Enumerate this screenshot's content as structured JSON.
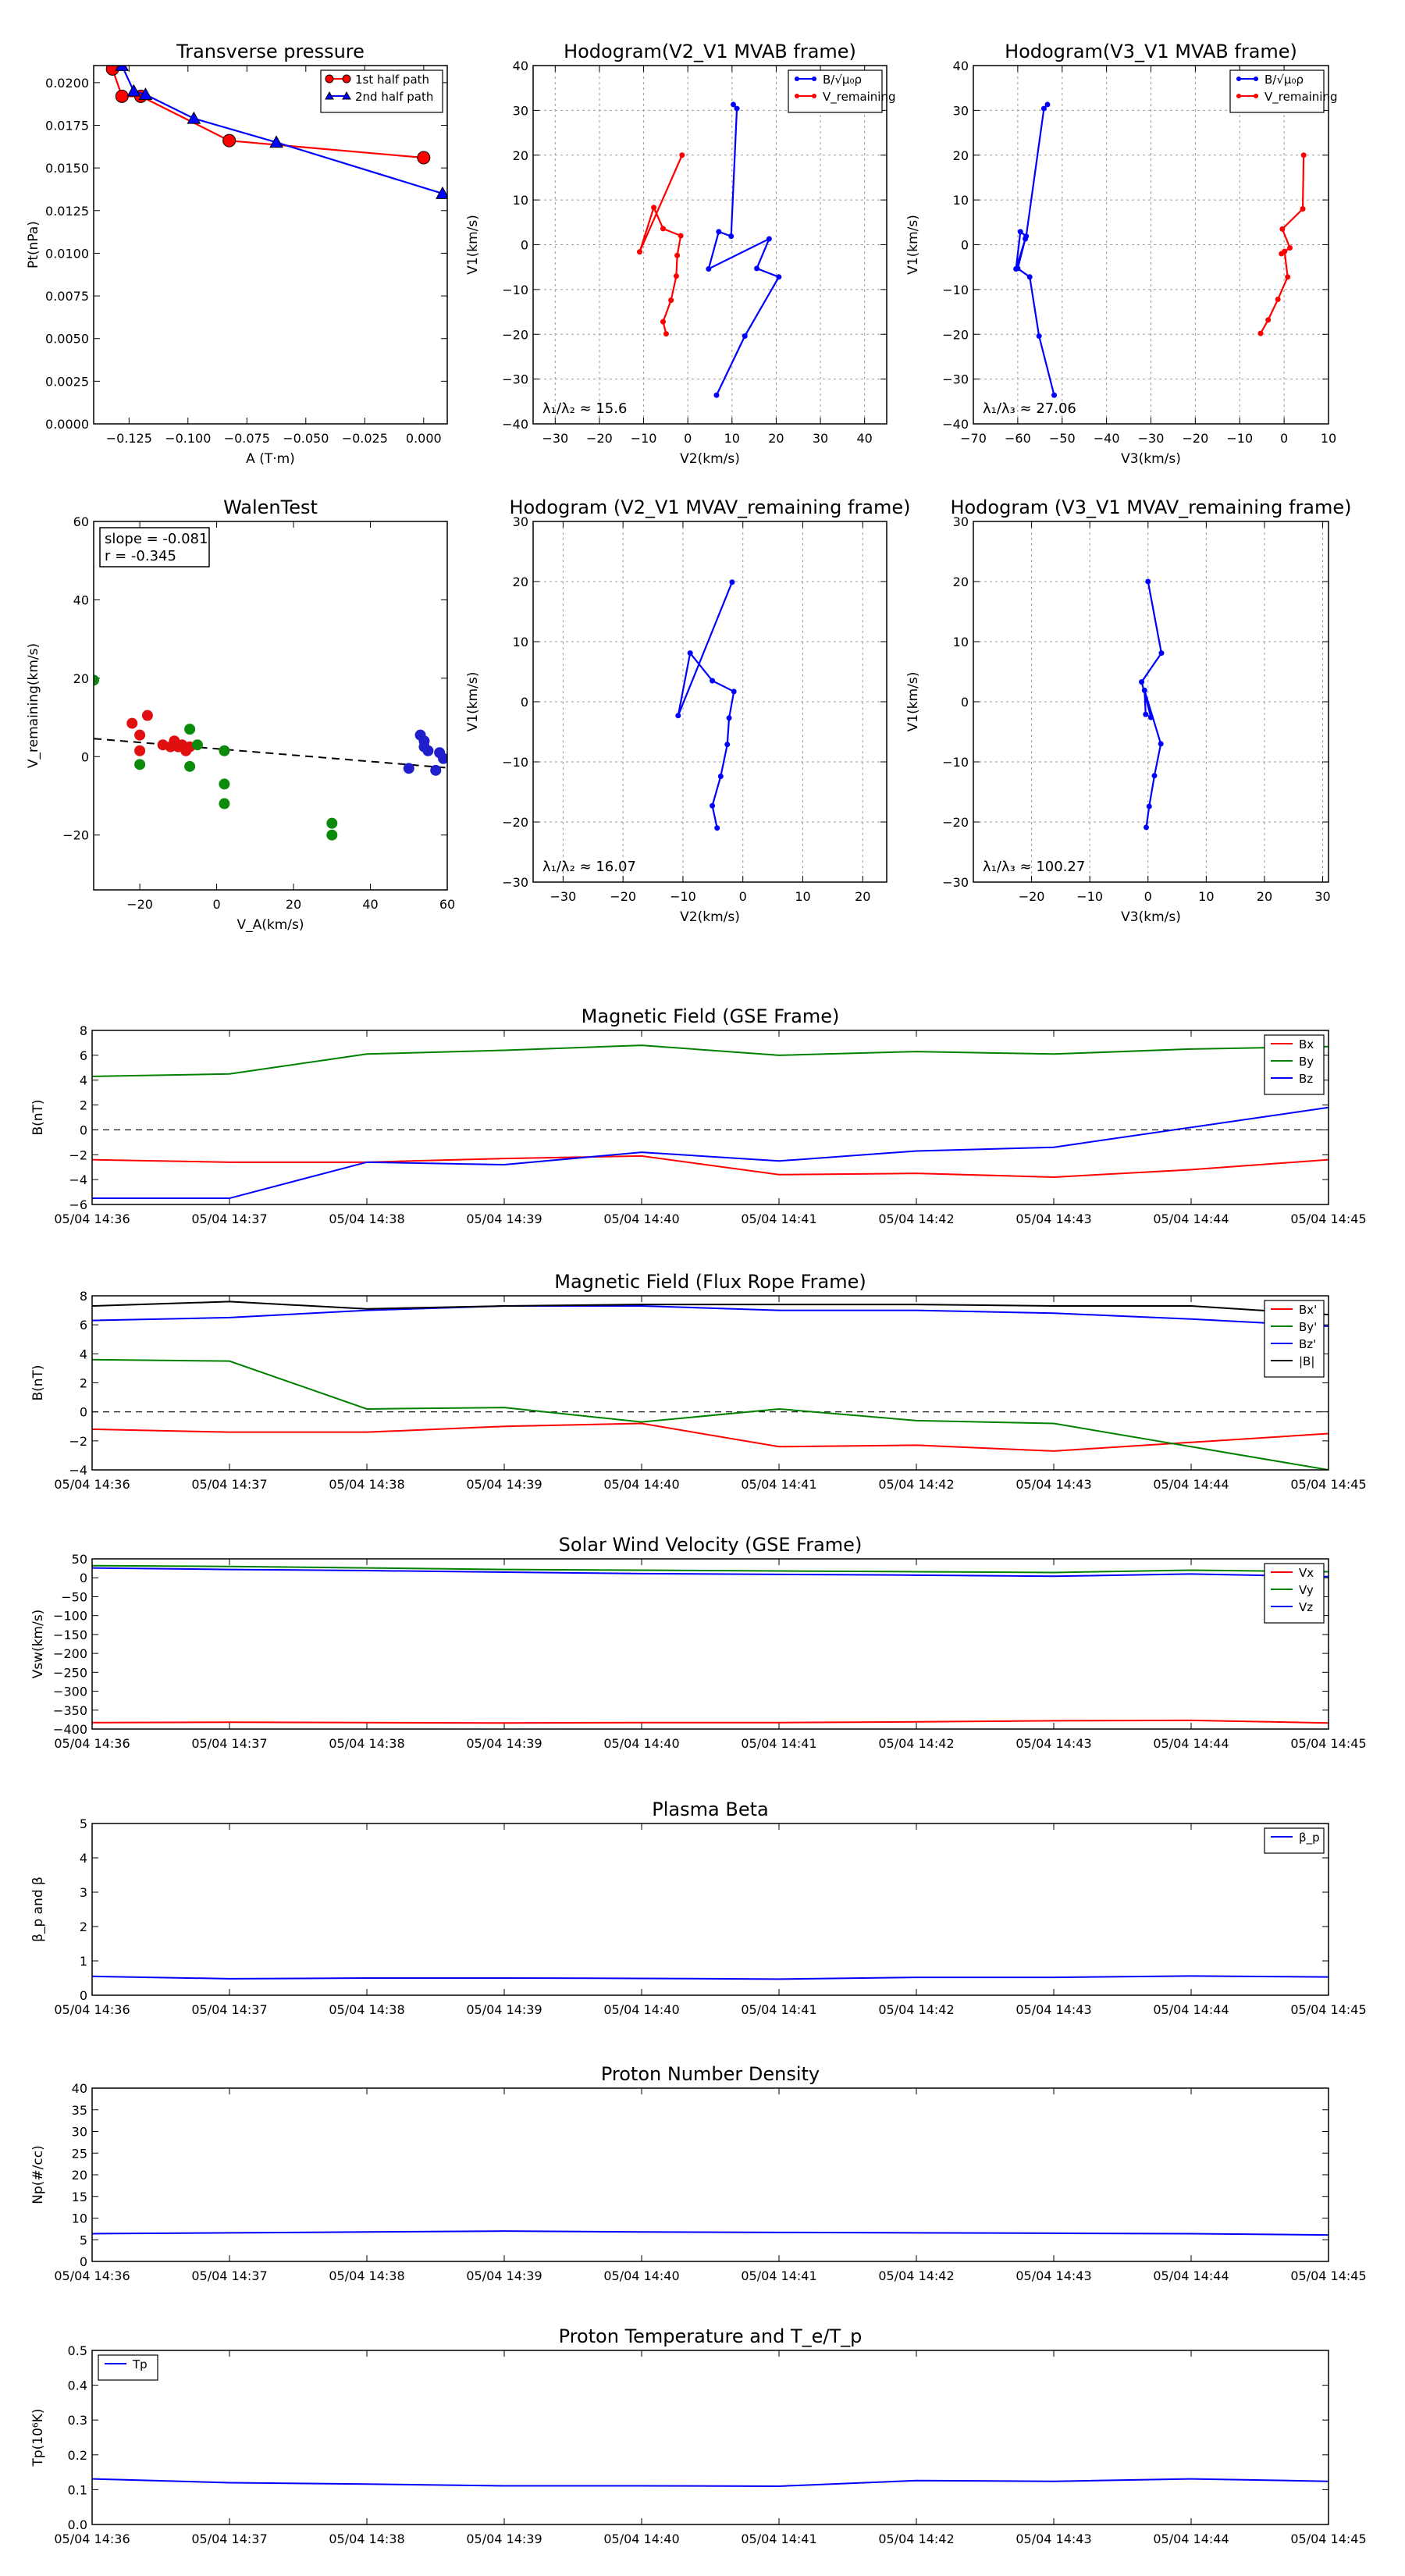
{
  "colors": {
    "red": "#ff0000",
    "blue": "#0000ff",
    "green": "#008000",
    "black": "#000000",
    "point_red": "#e01010",
    "point_blue": "#1f1fcc",
    "point_green": "#0c8a0c"
  },
  "chart_data": [
    {
      "type": "line",
      "title": "Transverse pressure",
      "xlabel": "A (T·m)",
      "ylabel": "Pt(nPa)",
      "xlim": [
        -0.14,
        0.01
      ],
      "ylim": [
        0,
        0.021
      ],
      "xticks": [
        -0.125,
        -0.1,
        -0.075,
        -0.05,
        -0.025,
        0.0
      ],
      "xtick_labels": [
        "−0.125",
        "−0.100",
        "−0.075",
        "−0.050",
        "−0.025",
        "0.000"
      ],
      "yticks": [
        0,
        0.0025,
        0.005,
        0.0075,
        0.01,
        0.0125,
        0.015,
        0.0175,
        0.02
      ],
      "ytick_labels": [
        "0.0000",
        "0.0025",
        "0.0050",
        "0.0075",
        "0.0100",
        "0.0125",
        "0.0150",
        "0.0175",
        "0.0200"
      ],
      "grid": false,
      "legend": "top-right",
      "series": [
        {
          "name": "1st half path",
          "color": "#ff0000",
          "marker": "circle",
          "x": [
            -0.132,
            -0.128,
            -0.12,
            -0.0825,
            0.0
          ],
          "y": [
            0.0208,
            0.0192,
            0.0192,
            0.0166,
            0.0156
          ]
        },
        {
          "name": "2nd half path",
          "color": "#0000ff",
          "marker": "triangle",
          "x": [
            -0.128,
            -0.123,
            -0.118,
            -0.0975,
            -0.0625,
            0.008
          ],
          "y": [
            0.021,
            0.0195,
            0.0193,
            0.0179,
            0.0165,
            0.0135
          ]
        }
      ]
    },
    {
      "type": "line",
      "title": "Hodogram(V2_V1 MVAB frame)",
      "xlabel": "V2(km/s)",
      "ylabel": "V1(km/s)",
      "xlim": [
        -35,
        45
      ],
      "ylim": [
        -40,
        40
      ],
      "xticks": [
        -30,
        -20,
        -10,
        0,
        10,
        20,
        30,
        40
      ],
      "xtick_labels": [
        "−30",
        "−20",
        "−10",
        "0",
        "10",
        "20",
        "30",
        "40"
      ],
      "yticks": [
        -40,
        -30,
        -20,
        -10,
        0,
        10,
        20,
        30,
        40
      ],
      "ytick_labels": [
        "−40",
        "−30",
        "−20",
        "−10",
        "0",
        "10",
        "20",
        "30",
        "40"
      ],
      "grid": true,
      "legend": "top-right",
      "annotation": "λ₁/λ₂ ≈ 15.6",
      "series": [
        {
          "name": "B/√μ₀ρ",
          "color": "#0000ff",
          "x": [
            10.3,
            11.1,
            9.8,
            7,
            4.7,
            18.4,
            15.6,
            20.6,
            12.9,
            6.5
          ],
          "y": [
            31.3,
            30.4,
            1.9,
            2.9,
            -5.4,
            1.3,
            -5.3,
            -7.2,
            -20.4,
            -33.6
          ]
        },
        {
          "name": "V_remaining",
          "color": "#ff0000",
          "x": [
            -1.3,
            -10.9,
            -7.7,
            -5.6,
            -1.6,
            -2.4,
            -2.6,
            -3.8,
            -5.6,
            -4.9
          ],
          "y": [
            20.0,
            -1.6,
            8.3,
            3.6,
            2.0,
            -2.4,
            -7.0,
            -12.4,
            -17.2,
            -19.9
          ]
        }
      ]
    },
    {
      "type": "line",
      "title": "Hodogram(V3_V1 MVAB frame)",
      "xlabel": "V3(km/s)",
      "ylabel": "V1(km/s)",
      "xlim": [
        -70,
        10
      ],
      "ylim": [
        -40,
        40
      ],
      "xticks": [
        -70,
        -60,
        -50,
        -40,
        -30,
        -20,
        -10,
        0,
        10
      ],
      "xtick_labels": [
        "−70",
        "−60",
        "−50",
        "−40",
        "−30",
        "−20",
        "−10",
        "0",
        "10"
      ],
      "yticks": [
        -40,
        -30,
        -20,
        -10,
        0,
        10,
        20,
        30,
        40
      ],
      "ytick_labels": [
        "−40",
        "−30",
        "−20",
        "−10",
        "0",
        "10",
        "20",
        "30",
        "40"
      ],
      "grid": true,
      "legend": "top-right",
      "annotation": "λ₁/λ₃ ≈ 27.06",
      "series": [
        {
          "name": "B/√μ₀ρ",
          "color": "#0000ff",
          "x": [
            -53.3,
            -54.1,
            -58.1,
            -59.4,
            -60.4,
            -58.3,
            -60.0,
            -57.3,
            -55.2,
            -51.8
          ],
          "y": [
            31.3,
            30.4,
            1.9,
            2.9,
            -5.4,
            1.3,
            -5.3,
            -7.2,
            -20.4,
            -33.6
          ]
        },
        {
          "name": "V_remaining",
          "color": "#ff0000",
          "x": [
            4.4,
            4.2,
            -0.4,
            1.3,
            -0.6,
            0.1,
            0.8,
            -1.4,
            -3.6,
            -5.3
          ],
          "y": [
            20.0,
            8.0,
            3.5,
            -0.7,
            -2.0,
            -1.5,
            -7.2,
            -12.2,
            -16.8,
            -19.8
          ]
        }
      ]
    },
    {
      "type": "scatter",
      "title": "WalenTest",
      "xlabel": "V_A(km/s)",
      "ylabel": "V_remaining(km/s)",
      "xlim": [
        -32,
        60
      ],
      "ylim": [
        -34,
        60
      ],
      "xticks": [
        -20,
        0,
        20,
        40,
        60
      ],
      "xtick_labels": [
        "−20",
        "0",
        "20",
        "40",
        "60"
      ],
      "yticks": [
        -20,
        0,
        20,
        40,
        60
      ],
      "ytick_labels": [
        "−20",
        "0",
        "20",
        "40",
        "60"
      ],
      "grid": false,
      "stats_lines": [
        "slope = -0.081",
        "r = -0.345"
      ],
      "fit_line": {
        "slope": -0.081,
        "intercept": 2.0,
        "style": "dashed"
      },
      "series": [
        {
          "color": "#e01010",
          "x": [
            -22,
            -18,
            -20,
            -20,
            -14,
            -11,
            -12,
            -9,
            -10,
            -8,
            -7
          ],
          "y": [
            8.5,
            10.5,
            5.5,
            1.5,
            3,
            4,
            2.5,
            3,
            2.5,
            1.5,
            2.5
          ],
          "name": ""
        },
        {
          "color": "#0c8a0c",
          "x": [
            -32,
            -20,
            -7,
            -5,
            -7,
            2,
            2,
            2,
            30,
            30
          ],
          "y": [
            19.5,
            -2,
            7,
            3,
            -2.5,
            1.5,
            -7,
            -12,
            -17,
            -20
          ],
          "name": ""
        },
        {
          "color": "#1f1fcc",
          "x": [
            50,
            53,
            54,
            55,
            54,
            57,
            58,
            59
          ],
          "y": [
            -3,
            5.5,
            4,
            1.5,
            2.5,
            -3.5,
            1,
            -0.5
          ],
          "name": ""
        }
      ]
    },
    {
      "type": "line",
      "title": "Hodogram (V2_V1 MVAV_remaining frame)",
      "xlabel": "V2(km/s)",
      "ylabel": "V1(km/s)",
      "xlim": [
        -35,
        24
      ],
      "ylim": [
        -30,
        30
      ],
      "xticks": [
        -30,
        -20,
        -10,
        0,
        10,
        20
      ],
      "xtick_labels": [
        "−30",
        "−20",
        "−10",
        "0",
        "10",
        "20"
      ],
      "yticks": [
        -30,
        -20,
        -10,
        0,
        10,
        20,
        30
      ],
      "ytick_labels": [
        "−30",
        "−20",
        "−10",
        "0",
        "10",
        "20",
        "30"
      ],
      "grid": true,
      "annotation": "λ₁/λ₂ ≈ 16.07",
      "series": [
        {
          "color": "#0000ff",
          "x": [
            -1.8,
            -10.8,
            -8.8,
            -5.1,
            -1.5,
            -2.3,
            -2.6,
            -3.7,
            -5.1,
            -4.3
          ],
          "y": [
            19.9,
            -2.3,
            8.1,
            3.5,
            1.7,
            -2.7,
            -7.1,
            -12.4,
            -17.3,
            -21.0
          ],
          "name": ""
        }
      ]
    },
    {
      "type": "line",
      "title": "Hodogram (V3_V1 MVAV_remaining frame)",
      "xlabel": "V3(km/s)",
      "ylabel": "V1(km/s)",
      "xlim": [
        -30,
        31
      ],
      "ylim": [
        -30,
        30
      ],
      "xticks": [
        -20,
        -10,
        0,
        10,
        20,
        30
      ],
      "xtick_labels": [
        "−20",
        "−10",
        "0",
        "10",
        "20",
        "30"
      ],
      "yticks": [
        -30,
        -20,
        -10,
        0,
        10,
        20,
        30
      ],
      "ytick_labels": [
        "−30",
        "−20",
        "−10",
        "0",
        "10",
        "20",
        "30"
      ],
      "grid": true,
      "annotation": "λ₁/λ₃ ≈ 100.27",
      "series": [
        {
          "color": "#0000ff",
          "x": [
            0.0,
            2.3,
            -1.1,
            0.5,
            -0.4,
            -0.6,
            2.2,
            1.1,
            0.2,
            -0.3
          ],
          "y": [
            20.0,
            8.1,
            3.3,
            -2.6,
            -2.1,
            1.9,
            -7.0,
            -12.3,
            -17.4,
            -20.9
          ],
          "name": ""
        }
      ]
    },
    {
      "type": "line",
      "title": "Magnetic Field (GSE Frame)",
      "ylabel": "B(nT)",
      "ylim": [
        -6,
        8
      ],
      "yticks": [
        -6,
        -4,
        -2,
        0,
        2,
        4,
        6,
        8
      ],
      "ytick_labels": [
        "−6",
        "−4",
        "−2",
        "0",
        "2",
        "4",
        "6",
        "8"
      ],
      "categories": [
        "05/04 14:36",
        "05/04 14:37",
        "05/04 14:38",
        "05/04 14:39",
        "05/04 14:40",
        "05/04 14:41",
        "05/04 14:42",
        "05/04 14:43",
        "05/04 14:44",
        "05/04 14:45"
      ],
      "zero_line": true,
      "legend": "top-right",
      "series": [
        {
          "name": "Bx",
          "color": "#ff0000",
          "values": [
            -2.4,
            -2.6,
            -2.6,
            -2.3,
            -2.1,
            -3.6,
            -3.5,
            -3.8,
            -3.2,
            -2.4
          ]
        },
        {
          "name": "By",
          "color": "#008000",
          "values": [
            4.3,
            4.5,
            6.1,
            6.4,
            6.8,
            6.0,
            6.3,
            6.1,
            6.5,
            6.7
          ]
        },
        {
          "name": "Bz",
          "color": "#0000ff",
          "values": [
            -5.5,
            -5.5,
            -2.6,
            -2.8,
            -1.8,
            -2.5,
            -1.7,
            -1.4,
            0.2,
            1.8
          ]
        }
      ]
    },
    {
      "type": "line",
      "title": "Magnetic Field (Flux Rope Frame)",
      "ylabel": "B(nT)",
      "ylim": [
        -4,
        8
      ],
      "yticks": [
        -4,
        -2,
        0,
        2,
        4,
        6,
        8
      ],
      "ytick_labels": [
        "−4",
        "−2",
        "0",
        "2",
        "4",
        "6",
        "8"
      ],
      "categories": [
        "05/04 14:36",
        "05/04 14:37",
        "05/04 14:38",
        "05/04 14:39",
        "05/04 14:40",
        "05/04 14:41",
        "05/04 14:42",
        "05/04 14:43",
        "05/04 14:44",
        "05/04 14:45"
      ],
      "zero_line": true,
      "legend": "top-right",
      "series": [
        {
          "name": "Bx'",
          "color": "#ff0000",
          "values": [
            -1.2,
            -1.4,
            -1.4,
            -1.0,
            -0.8,
            -2.4,
            -2.3,
            -2.7,
            -2.1,
            -1.5
          ]
        },
        {
          "name": "By'",
          "color": "#008000",
          "values": [
            3.6,
            3.5,
            0.2,
            0.3,
            -0.7,
            0.2,
            -0.6,
            -0.8,
            -2.4,
            -4.0
          ]
        },
        {
          "name": "Bz'",
          "color": "#0000ff",
          "values": [
            6.3,
            6.5,
            7.0,
            7.3,
            7.3,
            7.0,
            7.0,
            6.8,
            6.4,
            5.9
          ]
        },
        {
          "name": "|B|",
          "color": "#000000",
          "values": [
            7.3,
            7.6,
            7.1,
            7.3,
            7.4,
            7.4,
            7.4,
            7.3,
            7.3,
            6.7
          ]
        }
      ]
    },
    {
      "type": "line",
      "title": "Solar Wind Velocity (GSE Frame)",
      "ylabel": "Vsw(km/s)",
      "ylim": [
        -400,
        50
      ],
      "yticks": [
        -400,
        -350,
        -300,
        -250,
        -200,
        -150,
        -100,
        -50,
        0,
        50
      ],
      "ytick_labels": [
        "−400",
        "−350",
        "−300",
        "−250",
        "−200",
        "−150",
        "−100",
        "−50",
        "0",
        "50"
      ],
      "categories": [
        "05/04 14:36",
        "05/04 14:37",
        "05/04 14:38",
        "05/04 14:39",
        "05/04 14:40",
        "05/04 14:41",
        "05/04 14:42",
        "05/04 14:43",
        "05/04 14:44",
        "05/04 14:45"
      ],
      "legend": "top-right",
      "series": [
        {
          "name": "Vx",
          "color": "#ff0000",
          "values": [
            -383,
            -382,
            -383,
            -384,
            -383,
            -383,
            -381,
            -378,
            -377,
            -384
          ]
        },
        {
          "name": "Vy",
          "color": "#008000",
          "values": [
            32,
            30,
            26,
            22,
            20,
            18,
            16,
            14,
            20,
            16
          ]
        },
        {
          "name": "Vz",
          "color": "#0000ff",
          "values": [
            26,
            22,
            19,
            15,
            11,
            9,
            7,
            4,
            10,
            3
          ]
        }
      ]
    },
    {
      "type": "line",
      "title": "Plasma Beta",
      "ylabel": "β_p and β",
      "ylim": [
        0,
        5
      ],
      "yticks": [
        0,
        1,
        2,
        3,
        4,
        5
      ],
      "ytick_labels": [
        "0",
        "1",
        "2",
        "3",
        "4",
        "5"
      ],
      "categories": [
        "05/04 14:36",
        "05/04 14:37",
        "05/04 14:38",
        "05/04 14:39",
        "05/04 14:40",
        "05/04 14:41",
        "05/04 14:42",
        "05/04 14:43",
        "05/04 14:44",
        "05/04 14:45"
      ],
      "legend": "top-right",
      "series": [
        {
          "name": "β_p",
          "color": "#0000ff",
          "values": [
            0.55,
            0.48,
            0.5,
            0.5,
            0.49,
            0.47,
            0.52,
            0.52,
            0.56,
            0.53
          ]
        }
      ]
    },
    {
      "type": "line",
      "title": "Proton Number Density",
      "ylabel": "Np(#/cc)",
      "ylim": [
        0,
        40
      ],
      "yticks": [
        0,
        5,
        10,
        15,
        20,
        25,
        30,
        35,
        40
      ],
      "ytick_labels": [
        "0",
        "5",
        "10",
        "15",
        "20",
        "25",
        "30",
        "35",
        "40"
      ],
      "categories": [
        "05/04 14:36",
        "05/04 14:37",
        "05/04 14:38",
        "05/04 14:39",
        "05/04 14:40",
        "05/04 14:41",
        "05/04 14:42",
        "05/04 14:43",
        "05/04 14:44",
        "05/04 14:45"
      ],
      "series": [
        {
          "color": "#0000ff",
          "values": [
            6.4,
            6.6,
            6.8,
            7.0,
            6.8,
            6.7,
            6.6,
            6.5,
            6.4,
            6.1
          ],
          "name": ""
        }
      ]
    },
    {
      "type": "line",
      "title": "Proton Temperature and T_e/T_p",
      "ylabel": "Tp(10⁶K)",
      "ylim": [
        0,
        0.5
      ],
      "yticks": [
        0,
        0.1,
        0.2,
        0.3,
        0.4,
        0.5
      ],
      "ytick_labels": [
        "0.0",
        "0.1",
        "0.2",
        "0.3",
        "0.4",
        "0.5"
      ],
      "categories": [
        "05/04 14:36",
        "05/04 14:37",
        "05/04 14:38",
        "05/04 14:39",
        "05/04 14:40",
        "05/04 14:41",
        "05/04 14:42",
        "05/04 14:43",
        "05/04 14:44",
        "05/04 14:45"
      ],
      "legend": "top-left",
      "series": [
        {
          "name": "Tp",
          "color": "#0000ff",
          "values": [
            0.131,
            0.12,
            0.116,
            0.111,
            0.111,
            0.11,
            0.126,
            0.124,
            0.131,
            0.124
          ]
        }
      ]
    }
  ]
}
